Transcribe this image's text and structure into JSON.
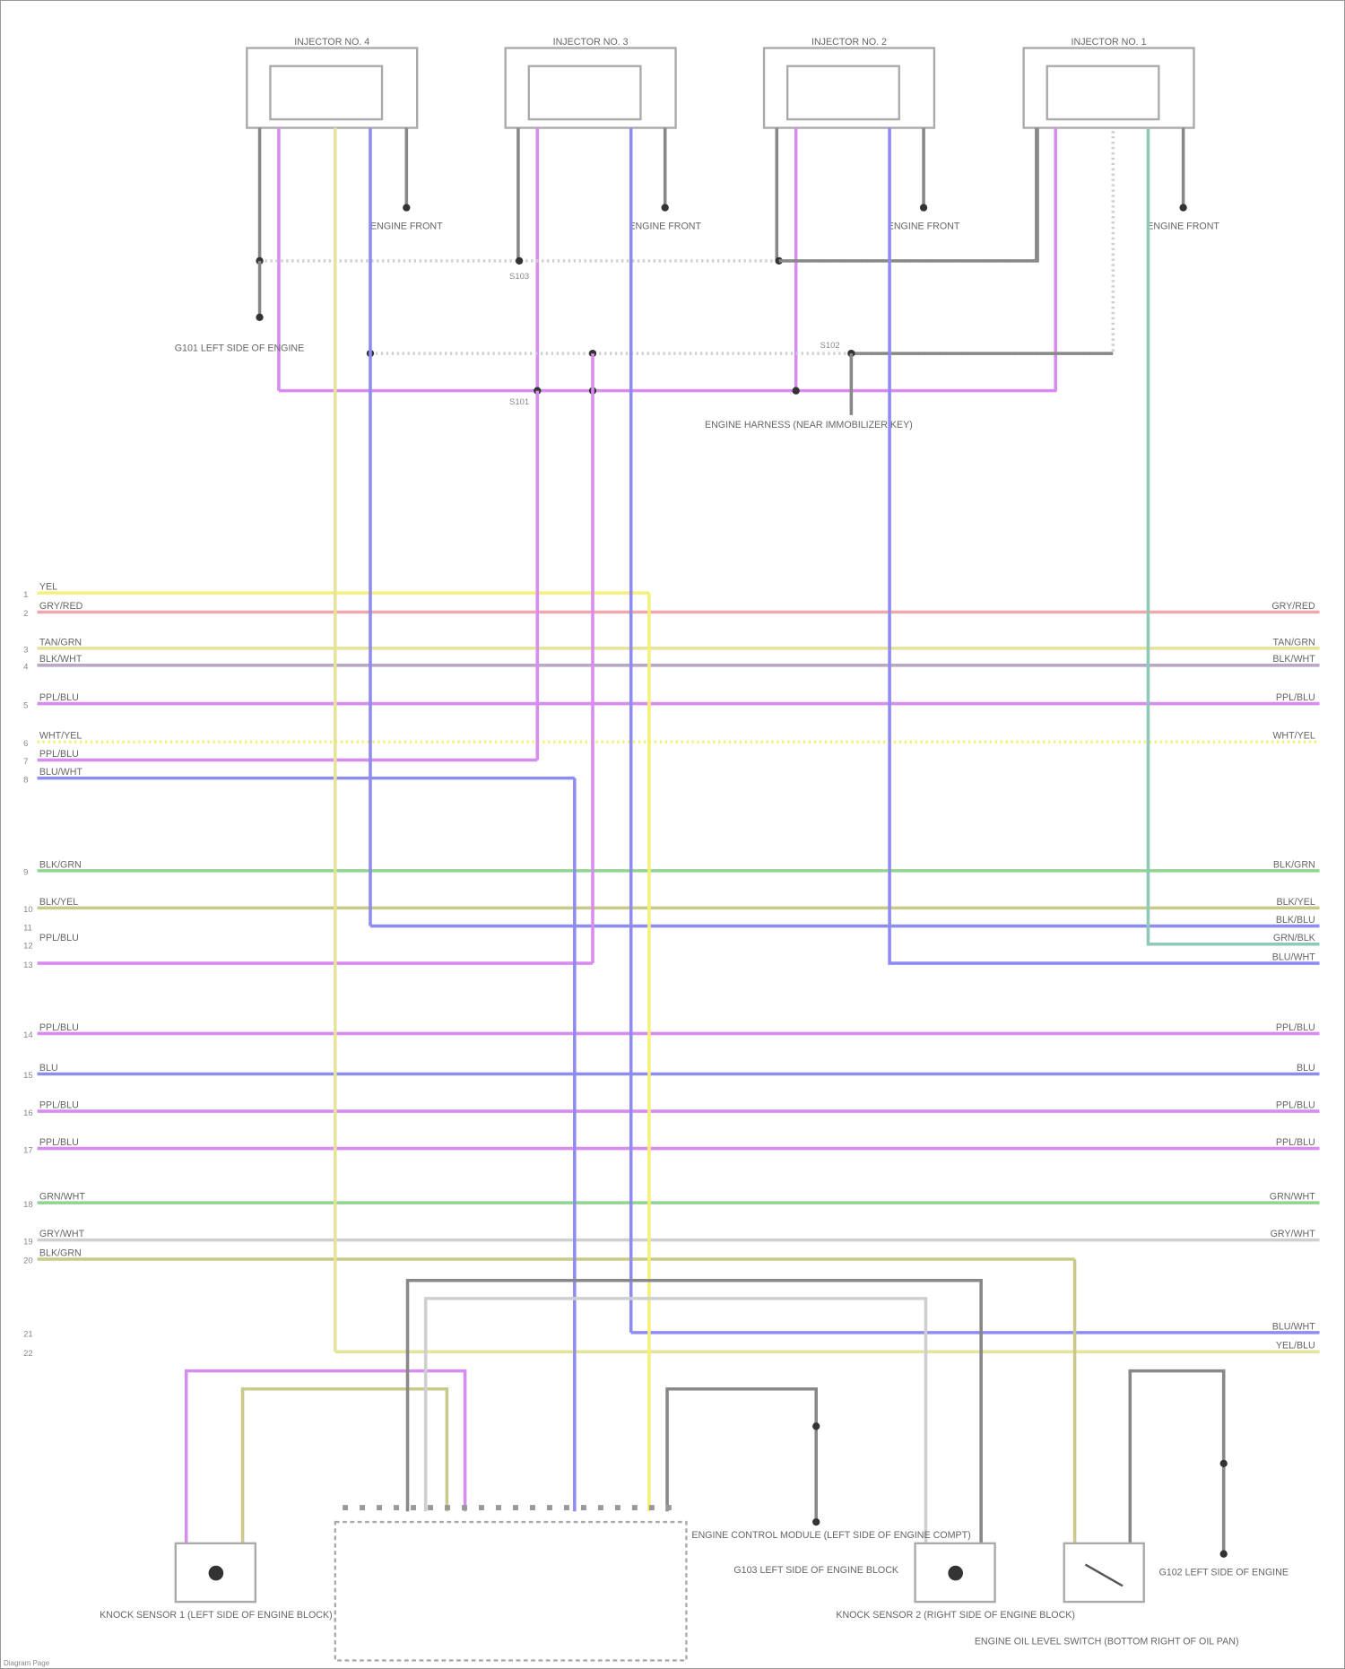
{
  "colors": {
    "yellow": "#f4f07a",
    "pink": "#f2a6b0",
    "tan": "#e6e39a",
    "gray": "#b9a9c4",
    "purple": "#d88cf0",
    "blue": "#8f8cf0",
    "green": "#8fd48f",
    "olive": "#c9c98a",
    "lightgray": "#cfcfcf",
    "wire_gray": "#888888",
    "teal": "#8fc9b9"
  },
  "relays": [
    {
      "title": "INJECTOR NO. 4",
      "ground": "ENGINE FRONT"
    },
    {
      "title": "INJECTOR NO. 3",
      "ground": "ENGINE FRONT"
    },
    {
      "title": "INJECTOR NO. 2",
      "ground": "ENGINE FRONT"
    },
    {
      "title": "INJECTOR NO. 1",
      "ground": "ENGINE FRONT"
    }
  ],
  "splices": {
    "s1": "S101",
    "s2": "S102",
    "s3": "S103",
    "ground_left": "G101 LEFT SIDE OF ENGINE",
    "harness": "ENGINE HARNESS (NEAR IMMOBILIZER KEY)"
  },
  "wires": [
    {
      "pin": "1",
      "left": "YEL",
      "right": ""
    },
    {
      "pin": "2",
      "left": "GRY/RED",
      "right": "GRY/RED"
    },
    {
      "pin": "3",
      "left": "TAN/GRN",
      "right": "TAN/GRN"
    },
    {
      "pin": "4",
      "left": "BLK/WHT",
      "right": "BLK/WHT"
    },
    {
      "pin": "5",
      "left": "PPL/BLU",
      "right": "PPL/BLU"
    },
    {
      "pin": "6",
      "left": "WHT/YEL",
      "right": "WHT/YEL"
    },
    {
      "pin": "7",
      "left": "PPL/BLU",
      "right": ""
    },
    {
      "pin": "8",
      "left": "BLU/WHT",
      "right": ""
    },
    {
      "pin": "9",
      "left": "BLK/GRN",
      "right": "BLK/GRN"
    },
    {
      "pin": "10",
      "left": "BLK/YEL",
      "right": "BLK/YEL"
    },
    {
      "pin": "11",
      "left": "",
      "right": "BLK/BLU"
    },
    {
      "pin": "12",
      "left": "PPL/BLU",
      "right": "GRN/BLK"
    },
    {
      "pin": "13",
      "left": "",
      "right": "BLU/WHT"
    },
    {
      "pin": "14",
      "left": "PPL/BLU",
      "right": "PPL/BLU"
    },
    {
      "pin": "15",
      "left": "BLU",
      "right": "BLU"
    },
    {
      "pin": "16",
      "left": "PPL/BLU",
      "right": "PPL/BLU"
    },
    {
      "pin": "17",
      "left": "PPL/BLU",
      "right": "PPL/BLU"
    },
    {
      "pin": "18",
      "left": "GRN/WHT",
      "right": "GRN/WHT"
    },
    {
      "pin": "19",
      "left": "GRY/WHT",
      "right": "GRY/WHT"
    },
    {
      "pin": "20",
      "left": "BLK/GRN",
      "right": ""
    },
    {
      "pin": "21",
      "left": "",
      "right": "BLU/WHT"
    },
    {
      "pin": "22",
      "left": "",
      "right": "YEL/BLU"
    }
  ],
  "bottom": {
    "knock_left": "KNOCK SENSOR 1 (LEFT SIDE OF ENGINE BLOCK)",
    "ecm": "ENGINE CONTROL MODULE (LEFT SIDE OF ENGINE COMPT)",
    "ground_mid": "G103 LEFT SIDE OF ENGINE BLOCK",
    "knock_right": "KNOCK SENSOR 2 (RIGHT SIDE OF ENGINE BLOCK)",
    "oil_switch": "ENGINE OIL LEVEL SWITCH (BOTTOM RIGHT OF OIL PAN)",
    "ground_right": "G102 LEFT SIDE OF ENGINE"
  },
  "footer": "Diagram Page"
}
